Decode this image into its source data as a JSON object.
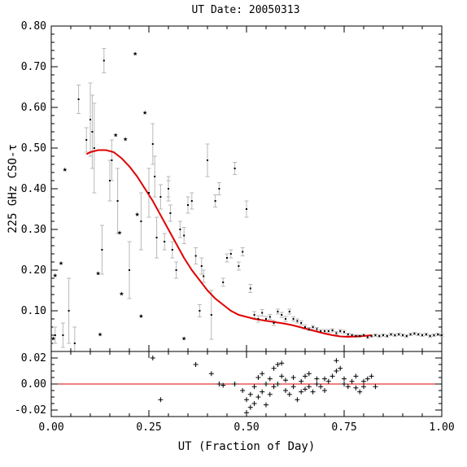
{
  "chart_data": {
    "type": "scatter",
    "title": "UT Date: 20050313",
    "xlabel": "UT (Fraction of Day)",
    "ylabel": "225 GHz CSO-τ",
    "xlim": [
      0,
      1
    ],
    "ylim": [
      0,
      0.8
    ],
    "residual_ylim": [
      -0.025,
      0.025
    ],
    "x_ticks": [
      "0.00",
      "0.25",
      "0.50",
      "0.75",
      "1.00"
    ],
    "y_ticks": [
      "0.10",
      "0.20",
      "0.30",
      "0.40",
      "0.50",
      "0.60",
      "0.70",
      "0.80"
    ],
    "residual_y_ticks": [
      "-0.02",
      "0.00",
      "0.02"
    ],
    "colors": {
      "fit": "#e00000",
      "errorbar": "#b8b8b8",
      "points": "#000000",
      "zero_line": "#e00000"
    },
    "series": [
      {
        "marker": "dot-with-errorbar",
        "x": [
          0.01,
          0.03,
          0.045,
          0.06,
          0.07,
          0.09,
          0.1,
          0.105,
          0.11,
          0.13,
          0.135,
          0.15,
          0.155,
          0.17,
          0.2,
          0.23,
          0.25,
          0.26,
          0.265,
          0.27,
          0.28,
          0.29,
          0.3,
          0.3,
          0.305,
          0.31,
          0.32,
          0.33,
          0.34,
          0.35,
          0.36,
          0.37,
          0.38,
          0.385,
          0.39,
          0.4,
          0.41,
          0.42,
          0.43,
          0.44,
          0.45,
          0.46,
          0.47,
          0.48,
          0.49,
          0.5,
          0.51,
          0.52,
          0.53,
          0.54,
          0.55,
          0.56,
          0.57,
          0.58,
          0.59,
          0.6,
          0.61,
          0.62,
          0.63,
          0.64,
          0.65,
          0.66,
          0.67,
          0.68,
          0.69,
          0.7,
          0.71,
          0.72,
          0.73,
          0.74,
          0.75,
          0.76,
          0.77,
          0.78,
          0.79,
          0.8,
          0.81,
          0.82,
          0.83,
          0.84,
          0.85,
          0.86,
          0.87,
          0.88,
          0.89,
          0.9,
          0.91,
          0.92,
          0.93,
          0.94,
          0.95,
          0.96,
          0.97,
          0.98,
          0.99,
          1.0
        ],
        "y": [
          0.04,
          0.04,
          0.1,
          0.02,
          0.62,
          0.52,
          0.57,
          0.54,
          0.5,
          0.25,
          0.715,
          0.42,
          0.47,
          0.37,
          0.2,
          0.32,
          0.39,
          0.51,
          0.43,
          0.28,
          0.38,
          0.27,
          0.4,
          0.4,
          0.34,
          0.25,
          0.2,
          0.3,
          0.285,
          0.36,
          0.37,
          0.235,
          0.1,
          0.21,
          0.185,
          0.47,
          0.09,
          0.37,
          0.4,
          0.17,
          0.23,
          0.24,
          0.45,
          0.21,
          0.245,
          0.35,
          0.155,
          0.09,
          0.08,
          0.095,
          0.08,
          0.085,
          0.07,
          0.098,
          0.09,
          0.08,
          0.098,
          0.08,
          0.075,
          0.07,
          0.06,
          0.055,
          0.06,
          0.055,
          0.05,
          0.05,
          0.05,
          0.052,
          0.045,
          0.05,
          0.048,
          0.042,
          0.04,
          0.038,
          0.038,
          0.04,
          0.035,
          0.038,
          0.04,
          0.038,
          0.04,
          0.038,
          0.042,
          0.04,
          0.042,
          0.04,
          0.038,
          0.042,
          0.044,
          0.042,
          0.04,
          0.042,
          0.038,
          0.04,
          0.042,
          0.04
        ],
        "err": [
          0.02,
          0.03,
          0.08,
          0.04,
          0.035,
          0.03,
          0.09,
          0.09,
          0.11,
          0.06,
          0.03,
          0.05,
          0.05,
          0.08,
          0.07,
          0.07,
          0.06,
          0.05,
          0.05,
          0.05,
          0.03,
          0.02,
          0.02,
          0.03,
          0.02,
          0.02,
          0.02,
          0.02,
          0.02,
          0.02,
          0.02,
          0.02,
          0.015,
          0.02,
          0.015,
          0.04,
          0.06,
          0.015,
          0.015,
          0.01,
          0.01,
          0.01,
          0.015,
          0.01,
          0.01,
          0.02,
          0.01,
          0.008,
          0.008,
          0.008,
          0.006,
          0.006,
          0.006,
          0.006,
          0.006,
          0.006,
          0.006,
          0.005,
          0.005,
          0.005,
          0.005,
          0.004,
          0.004,
          0.004,
          0.004,
          0.004,
          0.004,
          0.004,
          0.004,
          0.004,
          0.004,
          0.003,
          0.003,
          0.003,
          0.003,
          0.003,
          0.003,
          0.003,
          0.003,
          0.003,
          0.003,
          0.003,
          0.003,
          0.003,
          0.003,
          0.003,
          0.003,
          0.003,
          0.003,
          0.003,
          0.003,
          0.003,
          0.003,
          0.003,
          0.003,
          0.003
        ]
      },
      {
        "marker": "star",
        "x": [
          0.005,
          0.01,
          0.025,
          0.035,
          0.12,
          0.125,
          0.165,
          0.175,
          0.18,
          0.19,
          0.215,
          0.22,
          0.23,
          0.24,
          0.34
        ],
        "y": [
          0.035,
          0.19,
          0.22,
          0.45,
          0.195,
          0.045,
          0.535,
          0.295,
          0.145,
          0.525,
          0.735,
          0.34,
          0.09,
          0.59,
          0.035
        ]
      },
      {
        "marker": "fit-line",
        "x": [
          0.09,
          0.1,
          0.12,
          0.14,
          0.16,
          0.18,
          0.2,
          0.22,
          0.24,
          0.26,
          0.28,
          0.3,
          0.32,
          0.34,
          0.36,
          0.38,
          0.4,
          0.42,
          0.44,
          0.46,
          0.48,
          0.5,
          0.52,
          0.54,
          0.56,
          0.58,
          0.6,
          0.62,
          0.64,
          0.66,
          0.68,
          0.7,
          0.72,
          0.74,
          0.76,
          0.78,
          0.8,
          0.82
        ],
        "y": [
          0.485,
          0.49,
          0.495,
          0.495,
          0.49,
          0.475,
          0.455,
          0.43,
          0.4,
          0.37,
          0.335,
          0.3,
          0.265,
          0.23,
          0.2,
          0.175,
          0.15,
          0.13,
          0.115,
          0.1,
          0.09,
          0.085,
          0.08,
          0.077,
          0.074,
          0.071,
          0.068,
          0.064,
          0.059,
          0.054,
          0.049,
          0.044,
          0.04,
          0.037,
          0.036,
          0.037,
          0.038,
          0.04
        ]
      }
    ],
    "residuals": {
      "marker": "plus",
      "x": [
        0.26,
        0.28,
        0.37,
        0.41,
        0.43,
        0.44,
        0.47,
        0.49,
        0.5,
        0.5,
        0.51,
        0.51,
        0.52,
        0.52,
        0.53,
        0.53,
        0.54,
        0.54,
        0.55,
        0.55,
        0.56,
        0.56,
        0.57,
        0.57,
        0.58,
        0.58,
        0.59,
        0.59,
        0.6,
        0.6,
        0.61,
        0.62,
        0.62,
        0.63,
        0.64,
        0.64,
        0.65,
        0.65,
        0.66,
        0.66,
        0.67,
        0.68,
        0.68,
        0.69,
        0.7,
        0.7,
        0.71,
        0.72,
        0.73,
        0.73,
        0.74,
        0.75,
        0.75,
        0.76,
        0.77,
        0.78,
        0.78,
        0.79,
        0.8,
        0.8,
        0.81,
        0.82,
        0.83
      ],
      "y": [
        0.02,
        -0.012,
        0.015,
        0.008,
        0.0,
        -0.001,
        0.0,
        -0.005,
        -0.022,
        -0.012,
        -0.018,
        -0.008,
        -0.015,
        -0.002,
        -0.01,
        0.005,
        -0.006,
        0.008,
        -0.016,
        0.0,
        -0.008,
        0.004,
        -0.002,
        0.012,
        0.0,
        0.015,
        0.006,
        0.016,
        -0.005,
        0.003,
        -0.008,
        -0.002,
        0.005,
        -0.012,
        -0.006,
        0.002,
        -0.004,
        0.006,
        -0.002,
        0.008,
        -0.006,
        0.0,
        0.004,
        -0.002,
        -0.005,
        0.004,
        0.002,
        0.006,
        0.01,
        0.018,
        0.012,
        0.0,
        0.004,
        -0.002,
        0.002,
        0.006,
        -0.003,
        -0.006,
        -0.002,
        0.002,
        0.004,
        0.006,
        -0.002
      ]
    }
  }
}
